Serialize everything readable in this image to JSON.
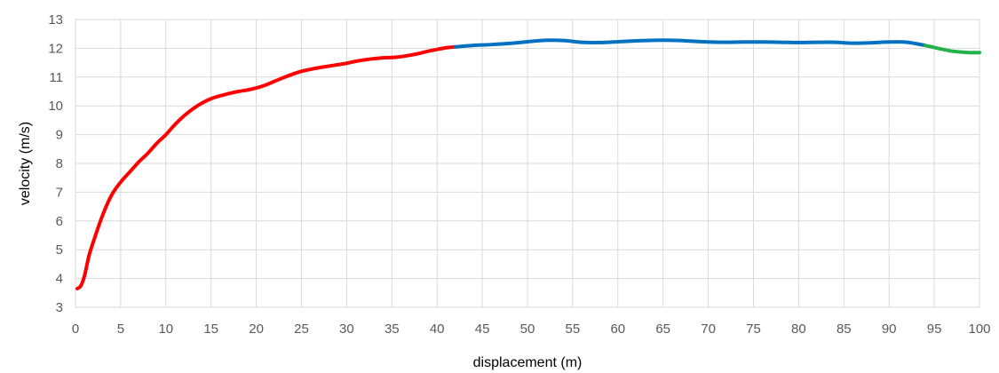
{
  "chart_data": {
    "type": "line",
    "title": "",
    "xlabel": "displacement (m)",
    "ylabel": "velocity (m/s)",
    "xlim": [
      0,
      100
    ],
    "ylim": [
      3,
      13
    ],
    "x_ticks": [
      "0",
      "5",
      "10",
      "15",
      "20",
      "25",
      "30",
      "35",
      "40",
      "45",
      "50",
      "55",
      "60",
      "65",
      "70",
      "75",
      "80",
      "85",
      "90",
      "95",
      "100"
    ],
    "y_ticks": [
      "3",
      "4",
      "5",
      "6",
      "7",
      "8",
      "9",
      "10",
      "11",
      "12",
      "13"
    ],
    "grid": true,
    "legend": "none",
    "series": [
      {
        "color": "#ff0000",
        "x": [
          0.2,
          0.6,
          1,
          1.5,
          2,
          3,
          4,
          5,
          6,
          7,
          8,
          9,
          10,
          11,
          12,
          13,
          14,
          15,
          16,
          17,
          18,
          19,
          20,
          21,
          22,
          23,
          24,
          25,
          26,
          27,
          28,
          29,
          30,
          31,
          32,
          33,
          34,
          35,
          36,
          37,
          38,
          39,
          40,
          41,
          42
        ],
        "y": [
          3.65,
          3.75,
          4.1,
          4.8,
          5.3,
          6.2,
          6.9,
          7.35,
          7.7,
          8.05,
          8.35,
          8.7,
          9.0,
          9.35,
          9.65,
          9.9,
          10.1,
          10.25,
          10.35,
          10.43,
          10.5,
          10.55,
          10.62,
          10.72,
          10.85,
          10.98,
          11.1,
          11.2,
          11.27,
          11.33,
          11.38,
          11.43,
          11.48,
          11.55,
          11.6,
          11.64,
          11.67,
          11.68,
          11.71,
          11.76,
          11.82,
          11.9,
          11.96,
          12.02,
          12.05
        ]
      },
      {
        "color": "#0070c0",
        "x": [
          42,
          44,
          46,
          48,
          50,
          52,
          54,
          56,
          58,
          60,
          62,
          64,
          66,
          68,
          70,
          72,
          74,
          76,
          78,
          80,
          82,
          84,
          86,
          88,
          90,
          92,
          94
        ],
        "y": [
          12.05,
          12.1,
          12.13,
          12.17,
          12.23,
          12.28,
          12.27,
          12.21,
          12.2,
          12.23,
          12.26,
          12.28,
          12.28,
          12.25,
          12.22,
          12.21,
          12.22,
          12.22,
          12.21,
          12.2,
          12.21,
          12.21,
          12.18,
          12.19,
          12.22,
          12.21,
          12.1
        ]
      },
      {
        "color": "#22b14c",
        "x": [
          94,
          95,
          96,
          97,
          98,
          99,
          100
        ],
        "y": [
          12.1,
          12.03,
          11.96,
          11.9,
          11.87,
          11.85,
          11.85
        ]
      }
    ]
  }
}
